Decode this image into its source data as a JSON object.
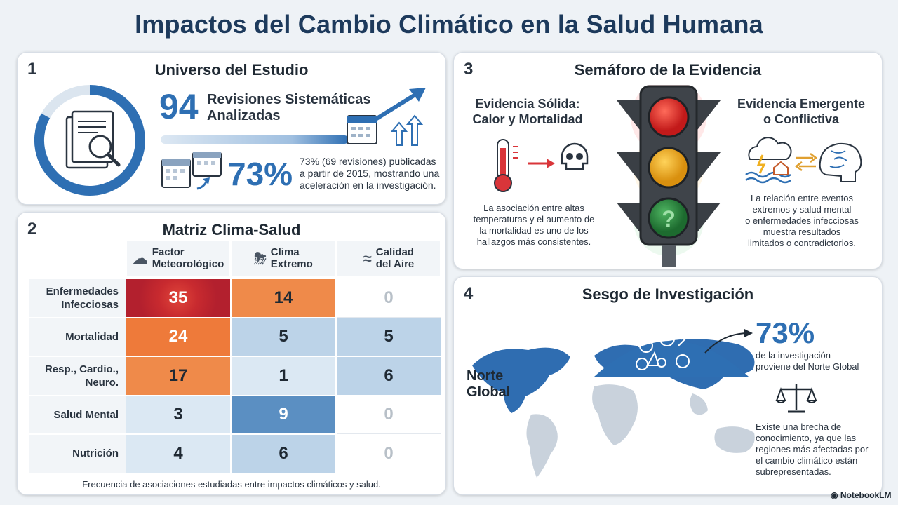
{
  "title": "Impactos del Cambio Climático en la Salud Humana",
  "panel1": {
    "number": "1",
    "title": "Universo del Estudio",
    "count": "94",
    "count_label_line1": "Revisiones Sistemáticas",
    "count_label_line2": "Analizadas",
    "percent": "73%",
    "percent_desc_line1": "73% (69 revisiones) publicadas",
    "percent_desc_line2": "a partir de 2015, mostrando una",
    "percent_desc_line3": "aceleración en la investigación."
  },
  "panel2": {
    "number": "2",
    "title": "Matriz Clima-Salud",
    "columns": [
      {
        "line1": "Factor",
        "line2": "Meteorológico",
        "icon": "storm-cloud-icon"
      },
      {
        "line1": "Clima",
        "line2": "Extremo",
        "icon": "lightning-cloud-icon"
      },
      {
        "line1": "Calidad",
        "line2": "del Aire",
        "icon": "wind-icon"
      }
    ],
    "rows": [
      {
        "line1": "Enfermedades",
        "line2": "Infecciosas",
        "values": [
          "35",
          "14",
          "0"
        ]
      },
      {
        "line1": "Mortalidad",
        "line2": "",
        "values": [
          "24",
          "5",
          "5"
        ]
      },
      {
        "line1": "Resp., Cardio.,",
        "line2": "Neuro.",
        "values": [
          "17",
          "1",
          "6"
        ]
      },
      {
        "line1": "Salud Mental",
        "line2": "",
        "values": [
          "3",
          "9",
          "0"
        ]
      },
      {
        "line1": "Nutrición",
        "line2": "",
        "values": [
          "4",
          "6",
          "0"
        ]
      }
    ],
    "caption": "Frecuencia de asociaciones estudiadas entre impactos climáticos y salud."
  },
  "panel3": {
    "number": "3",
    "title": "Semáforo de la Evidencia",
    "left_title_line1": "Evidencia Sólida:",
    "left_title_line2": "Calor y Mortalidad",
    "left_desc_line1": "La asociación entre altas",
    "left_desc_line2": "temperaturas y el aumento de",
    "left_desc_line3": "la mortalidad es uno de los",
    "left_desc_line4": "hallazgos más consistentes.",
    "right_title_line1": "Evidencia Emergente",
    "right_title_line2": "o Conflictiva",
    "right_desc_line1": "La relación entre eventos",
    "right_desc_line2": "extremos y salud mental",
    "right_desc_line3": "o enfermedades infecciosas",
    "right_desc_line4": "muestra resultados",
    "right_desc_line5": "limitados o contradictorios.",
    "light_symbol": "?"
  },
  "panel4": {
    "number": "4",
    "title": "Sesgo de Investigación",
    "region_line1": "Norte",
    "region_line2": "Global",
    "percent": "73%",
    "percent_desc_line1": "de la investigación",
    "percent_desc_line2": "proviene del Norte Global",
    "gap_line1": "Existe una brecha de",
    "gap_line2": "conocimiento, ya que las",
    "gap_line3": "regiones más afectadas por",
    "gap_line4": "el cambio climático están",
    "gap_line5": "subrepresentadas."
  },
  "brand": "NotebookLM",
  "colors": {
    "accent": "#2e6fb3",
    "heat_high": "#b3202e",
    "heat_med": "#ef8a4a",
    "heat_low": "#f6c39a",
    "cool_high": "#5b8fc2",
    "cool_med": "#bcd3e8",
    "cool_low": "#dbe8f3"
  }
}
